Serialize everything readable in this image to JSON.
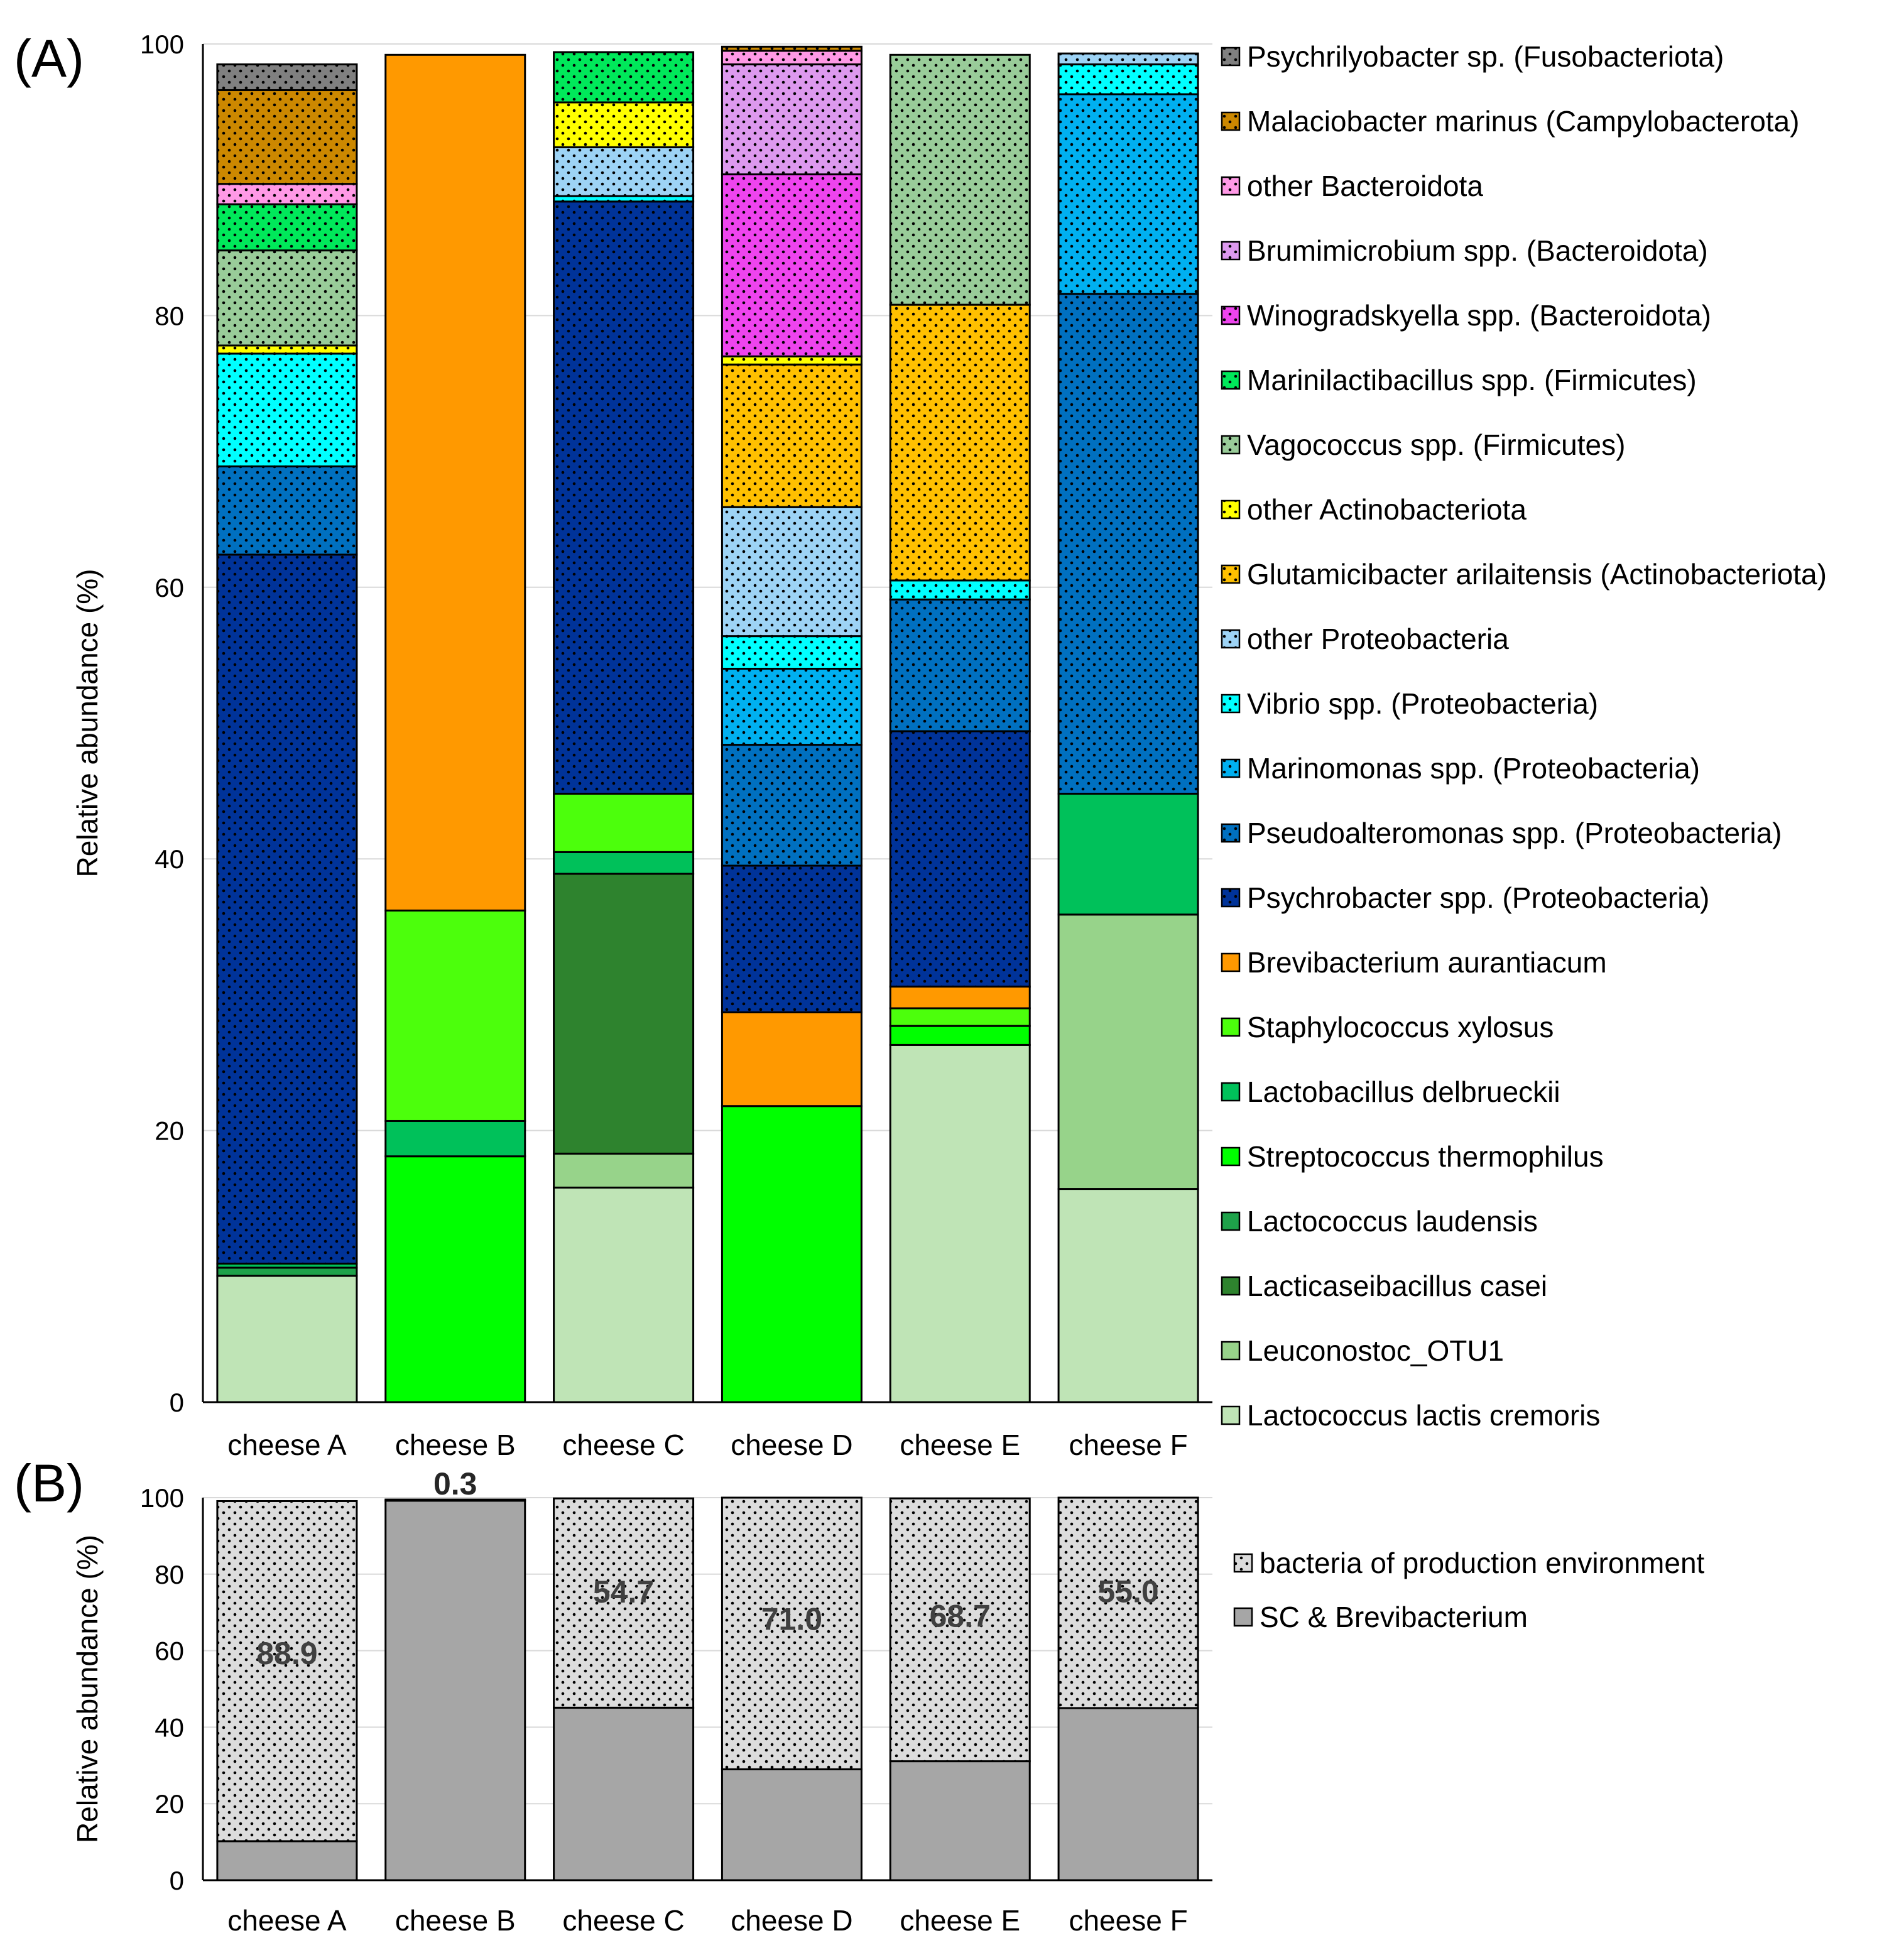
{
  "figure_labels": {
    "panel_a": "(A)",
    "panel_b": "(B)"
  },
  "chart_data": [
    {
      "type": "bar",
      "stacked": true,
      "panel": "(A)",
      "title": "",
      "xlabel": "",
      "ylabel": "Relative abundance (%)",
      "ylim": [
        0,
        100
      ],
      "yticks": [
        0,
        20,
        40,
        60,
        80,
        100
      ],
      "grid": true,
      "legend_position": "right",
      "categories": [
        "cheese A",
        "cheese B",
        "cheese C",
        "cheese D",
        "cheese E",
        "cheese F"
      ],
      "series": [
        {
          "name": "Lactococcus lactis cremoris",
          "color": "#BFE4B6",
          "pattern": false,
          "values": [
            9.3,
            0,
            15.8,
            0,
            26.3,
            15.7
          ]
        },
        {
          "name": "Leuconostoc_OTU1",
          "color": "#97D38A",
          "pattern": false,
          "values": [
            0,
            0,
            2.5,
            0,
            0,
            20.2
          ]
        },
        {
          "name": "Lacticaseibacillus casei",
          "color": "#2E832E",
          "pattern": false,
          "values": [
            0,
            0,
            20.6,
            0,
            0,
            0
          ]
        },
        {
          "name": "Lactococcus laudensis",
          "color": "#1EA24A",
          "pattern": false,
          "values": [
            0.6,
            0,
            0,
            0,
            0,
            0
          ]
        },
        {
          "name": "Streptococcus thermophilus",
          "color": "#00FF00",
          "pattern": false,
          "values": [
            0,
            18.1,
            0,
            21.8,
            1.4,
            0
          ]
        },
        {
          "name": "Lactobacillus delbrueckii",
          "color": "#00C15A",
          "pattern": false,
          "values": [
            0.3,
            2.6,
            1.6,
            0,
            0,
            8.9
          ]
        },
        {
          "name": "Staphylococcus xylosus",
          "color": "#4CFF0C",
          "pattern": false,
          "values": [
            0,
            15.5,
            4.3,
            0,
            1.3,
            0
          ]
        },
        {
          "name": "Brevibacterium aurantiacum",
          "color": "#FF9900",
          "pattern": false,
          "values": [
            0,
            63.0,
            0,
            6.9,
            1.6,
            0
          ]
        },
        {
          "name": "Psychrobacter spp. (Proteobacteria)",
          "color": "#003399",
          "pattern": true,
          "values": [
            52.2,
            0,
            43.6,
            10.8,
            18.8,
            0
          ]
        },
        {
          "name": "Pseudoalteromonas spp. (Proteobacteria)",
          "color": "#0070C0",
          "pattern": true,
          "values": [
            6.5,
            0,
            0,
            8.9,
            9.7,
            36.8
          ]
        },
        {
          "name": "Marinomonas spp. (Proteobacteria)",
          "color": "#00B0F0",
          "pattern": true,
          "values": [
            0,
            0,
            0,
            5.6,
            0,
            14.7
          ]
        },
        {
          "name": "Vibrio spp. (Proteobacteria)",
          "color": "#00FFFF",
          "pattern": true,
          "values": [
            8.3,
            0,
            0.4,
            2.4,
            1.4,
            2.2
          ]
        },
        {
          "name": "other Proteobacteria",
          "color": "#9DD3F5",
          "pattern": true,
          "values": [
            0,
            0,
            3.6,
            9.5,
            0,
            0.8
          ]
        },
        {
          "name": "Glutamicibacter arilaitensis (Actinobacteriota)",
          "color": "#FFC000",
          "pattern": true,
          "values": [
            0,
            0,
            0,
            10.5,
            20.3,
            0
          ]
        },
        {
          "name": "other Actinobacteriota",
          "color": "#FFFF00",
          "pattern": true,
          "values": [
            0.6,
            0,
            3.3,
            0.6,
            0,
            0
          ]
        },
        {
          "name": "Vagococcus spp. (Firmicutes)",
          "color": "#99CC99",
          "pattern": true,
          "values": [
            7.0,
            0,
            0,
            0,
            18.4,
            0
          ]
        },
        {
          "name": "Marinilactibacillus spp. (Firmicutes)",
          "color": "#00E85A",
          "pattern": true,
          "values": [
            3.4,
            0,
            3.7,
            0,
            0,
            0
          ]
        },
        {
          "name": "Winogradskyella spp. (Bacteroidota)",
          "color": "#EE44EE",
          "pattern": true,
          "values": [
            0,
            0,
            0,
            13.4,
            0,
            0
          ]
        },
        {
          "name": "Brumimicrobium spp. (Bacteroidota)",
          "color": "#DD99EE",
          "pattern": true,
          "values": [
            0,
            0,
            0,
            8.1,
            0,
            0
          ]
        },
        {
          "name": "other Bacteroidota",
          "color": "#FF99E6",
          "pattern": true,
          "values": [
            1.5,
            0,
            0,
            1.0,
            0,
            0
          ]
        },
        {
          "name": "Malaciobacter marinus (Campylobacterota)",
          "color": "#CC8800",
          "pattern": true,
          "values": [
            6.9,
            0,
            0,
            0.3,
            0,
            0
          ]
        },
        {
          "name": "Psychrilyobacter sp. (Fusobacteriota)",
          "color": "#808080",
          "pattern": true,
          "values": [
            1.9,
            0,
            0,
            0,
            0,
            0
          ]
        }
      ]
    },
    {
      "type": "bar",
      "stacked": true,
      "panel": "(B)",
      "title": "",
      "xlabel": "",
      "ylabel": "Relative abundance (%)",
      "ylim": [
        0,
        100
      ],
      "yticks": [
        0,
        20,
        40,
        60,
        80,
        100
      ],
      "grid": true,
      "legend_position": "right",
      "categories": [
        "cheese A",
        "cheese B",
        "cheese C",
        "cheese D",
        "cheese E",
        "cheese F"
      ],
      "series": [
        {
          "name": "SC & Brevibacterium",
          "color": "#A6A6A6",
          "pattern": false,
          "values": [
            10.2,
            99.2,
            45.1,
            29.0,
            31.1,
            45.0
          ]
        },
        {
          "name": "bacteria of production environment",
          "color": "#DCDCDC",
          "pattern": true,
          "values": [
            88.9,
            0.3,
            54.7,
            71.0,
            68.7,
            55.0
          ]
        }
      ],
      "data_labels": [
        "88.9",
        "0.3",
        "54.7",
        "71.0",
        "68.7",
        "55.0"
      ]
    }
  ]
}
